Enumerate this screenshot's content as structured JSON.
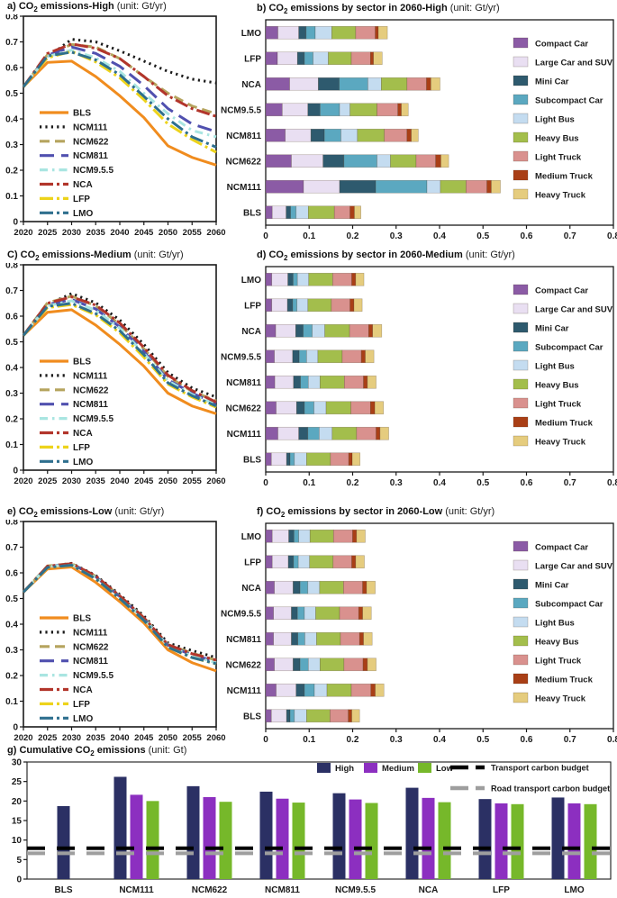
{
  "panels": {
    "a": {
      "prefix": "a) CO",
      "sub": "2",
      "rest": " emissions-High",
      "unit": "(unit: Gt/yr)"
    },
    "b": {
      "prefix": "b) CO",
      "sub": "2",
      "rest": " emissions by sector in 2060-High",
      "unit": "(unit: Gt/yr)"
    },
    "c": {
      "prefix": "C) CO",
      "sub": "2",
      "rest": " emissions-Medium",
      "unit": "(unit: Gt/yr)"
    },
    "d": {
      "prefix": "d) CO",
      "sub": "2",
      "rest": " emissions by sector in 2060-Medium",
      "unit": "(unit: Gt/yr)"
    },
    "e": {
      "prefix": "e) CO",
      "sub": "2",
      "rest": " emissions-Low",
      "unit": "(unit: Gt/yr)"
    },
    "f": {
      "prefix": "f) CO",
      "sub": "2",
      "rest": " emissions by sector in 2060-Low",
      "unit": "(unit: Gt/yr)"
    },
    "g": {
      "prefix": "g) Cumulative CO",
      "sub": "2",
      "rest": " emissions",
      "unit": "(unit: Gt)"
    }
  },
  "chart_data": [
    {
      "id": "a",
      "type": "line",
      "title": "a) CO2 emissions-High (unit: Gt/yr)",
      "x": [
        2020,
        2025,
        2030,
        2035,
        2040,
        2045,
        2050,
        2055,
        2060
      ],
      "ylim": [
        0,
        0.8
      ],
      "yticks": [
        0,
        0.1,
        0.2,
        0.3,
        0.4,
        0.5,
        0.6,
        0.7,
        0.8
      ],
      "legend_position": "lower-left",
      "grid": false,
      "series": [
        {
          "name": "BLS",
          "color": "#F08C1E",
          "dash": "solid",
          "values": [
            0.525,
            0.62,
            0.625,
            0.565,
            0.49,
            0.405,
            0.295,
            0.25,
            0.22
          ]
        },
        {
          "name": "NCM111",
          "color": "#1A1A1A",
          "dash": "dotted",
          "values": [
            0.525,
            0.64,
            0.71,
            0.7,
            0.665,
            0.625,
            0.585,
            0.555,
            0.54
          ]
        },
        {
          "name": "NCM622",
          "color": "#B5A45E",
          "dash": "dashed",
          "values": [
            0.525,
            0.65,
            0.69,
            0.68,
            0.635,
            0.565,
            0.5,
            0.45,
            0.42
          ]
        },
        {
          "name": "NCM811",
          "color": "#5050AF",
          "dash": "longdash",
          "values": [
            0.525,
            0.648,
            0.68,
            0.655,
            0.605,
            0.53,
            0.44,
            0.38,
            0.35
          ]
        },
        {
          "name": "NCM9.5.5",
          "color": "#A9E5E1",
          "dash": "dashdot",
          "values": [
            0.525,
            0.643,
            0.668,
            0.638,
            0.585,
            0.5,
            0.42,
            0.355,
            0.33
          ]
        },
        {
          "name": "NCA",
          "color": "#B2352B",
          "dash": "soliddot",
          "values": [
            0.525,
            0.655,
            0.692,
            0.675,
            0.635,
            0.565,
            0.49,
            0.44,
            0.41
          ]
        },
        {
          "name": "LFP",
          "color": "#EDD31B",
          "dash": "soliddot",
          "values": [
            0.525,
            0.638,
            0.663,
            0.622,
            0.56,
            0.475,
            0.38,
            0.32,
            0.27
          ]
        },
        {
          "name": "LMO",
          "color": "#2E6F8E",
          "dash": "soliddot",
          "values": [
            0.525,
            0.645,
            0.66,
            0.63,
            0.572,
            0.488,
            0.4,
            0.33,
            0.29
          ]
        }
      ]
    },
    {
      "id": "b",
      "type": "stacked-bar-horizontal",
      "title": "b) CO2 emissions by sector in 2060-High (unit: Gt/yr)",
      "xlim": [
        0,
        0.8
      ],
      "xticks": [
        0,
        0.1,
        0.2,
        0.3,
        0.4,
        0.5,
        0.6,
        0.7,
        0.8
      ],
      "categories": [
        "LMO",
        "LFP",
        "NCA",
        "NCM9.5.5",
        "NCM811",
        "NCM622",
        "NCM111",
        "BLS"
      ],
      "sectors": [
        {
          "name": "Compact Car",
          "color": "#8B5BA5"
        },
        {
          "name": "Large Car and SUV",
          "color": "#E9DFF2"
        },
        {
          "name": "Mini Car",
          "color": "#2E5A6E"
        },
        {
          "name": "Subcompact Car",
          "color": "#5BA8C0"
        },
        {
          "name": "Light Bus",
          "color": "#C4DCF0"
        },
        {
          "name": "Heavy Bus",
          "color": "#A3BE4C"
        },
        {
          "name": "Light Truck",
          "color": "#D9918E"
        },
        {
          "name": "Medium Truck",
          "color": "#A93F16"
        },
        {
          "name": "Heavy Truck",
          "color": "#E5CC7E"
        }
      ],
      "values": {
        "LMO": [
          0.028,
          0.048,
          0.017,
          0.021,
          0.038,
          0.055,
          0.045,
          0.007,
          0.021
        ],
        "LFP": [
          0.027,
          0.046,
          0.016,
          0.02,
          0.035,
          0.053,
          0.044,
          0.007,
          0.02
        ],
        "NCA": [
          0.055,
          0.066,
          0.048,
          0.066,
          0.031,
          0.059,
          0.045,
          0.01,
          0.021
        ],
        "NCM9.5.5": [
          0.038,
          0.059,
          0.028,
          0.045,
          0.024,
          0.062,
          0.048,
          0.008,
          0.016
        ],
        "NCM811": [
          0.045,
          0.059,
          0.031,
          0.038,
          0.038,
          0.062,
          0.052,
          0.01,
          0.016
        ],
        "NCM622": [
          0.059,
          0.073,
          0.048,
          0.076,
          0.031,
          0.059,
          0.045,
          0.012,
          0.018
        ],
        "NCM111": [
          0.087,
          0.083,
          0.083,
          0.118,
          0.031,
          0.059,
          0.048,
          0.01,
          0.021
        ],
        "BLS": [
          0.015,
          0.032,
          0.01,
          0.013,
          0.028,
          0.06,
          0.036,
          0.01,
          0.015
        ]
      }
    },
    {
      "id": "c",
      "type": "line",
      "title": "C) CO2 emissions-Medium (unit: Gt/yr)",
      "x": [
        2020,
        2025,
        2030,
        2035,
        2040,
        2045,
        2050,
        2055,
        2060
      ],
      "ylim": [
        0,
        0.8
      ],
      "yticks": [
        0,
        0.1,
        0.2,
        0.3,
        0.4,
        0.5,
        0.6,
        0.7,
        0.8
      ],
      "legend_position": "lower-left",
      "grid": false,
      "series": [
        {
          "name": "BLS",
          "color": "#F08C1E",
          "dash": "solid",
          "values": [
            0.525,
            0.615,
            0.625,
            0.565,
            0.49,
            0.405,
            0.3,
            0.25,
            0.22
          ]
        },
        {
          "name": "NCM111",
          "color": "#1A1A1A",
          "dash": "dotted",
          "values": [
            0.525,
            0.645,
            0.688,
            0.652,
            0.585,
            0.49,
            0.38,
            0.32,
            0.285
          ]
        },
        {
          "name": "NCM622",
          "color": "#B5A45E",
          "dash": "dashed",
          "values": [
            0.525,
            0.652,
            0.678,
            0.64,
            0.568,
            0.473,
            0.365,
            0.307,
            0.27
          ]
        },
        {
          "name": "NCM811",
          "color": "#5050AF",
          "dash": "longdash",
          "values": [
            0.525,
            0.645,
            0.665,
            0.628,
            0.558,
            0.462,
            0.352,
            0.3,
            0.26
          ]
        },
        {
          "name": "NCM9.5.5",
          "color": "#A9E5E1",
          "dash": "dashdot",
          "values": [
            0.525,
            0.64,
            0.66,
            0.623,
            0.553,
            0.455,
            0.348,
            0.295,
            0.255
          ]
        },
        {
          "name": "NCA",
          "color": "#B2352B",
          "dash": "soliddot",
          "values": [
            0.525,
            0.65,
            0.675,
            0.643,
            0.573,
            0.478,
            0.37,
            0.31,
            0.265
          ]
        },
        {
          "name": "LFP",
          "color": "#EDD31B",
          "dash": "soliddot",
          "values": [
            0.525,
            0.633,
            0.645,
            0.605,
            0.535,
            0.44,
            0.335,
            0.285,
            0.245
          ]
        },
        {
          "name": "LMO",
          "color": "#2E6F8E",
          "dash": "soliddot",
          "values": [
            0.525,
            0.638,
            0.65,
            0.61,
            0.543,
            0.45,
            0.34,
            0.29,
            0.25
          ]
        }
      ]
    },
    {
      "id": "d",
      "type": "stacked-bar-horizontal",
      "title": "d) CO2 emissions by sector in 2060-Medium (unit: Gt/yr)",
      "xlim": [
        0,
        0.8
      ],
      "xticks": [
        0,
        0.1,
        0.2,
        0.3,
        0.4,
        0.5,
        0.6,
        0.7,
        0.8
      ],
      "categories": [
        "LMO",
        "LFP",
        "NCA",
        "NCM9.5.5",
        "NCM811",
        "NCM622",
        "NCM111",
        "BLS"
      ],
      "sectors": [
        {
          "name": "Compact Car",
          "color": "#8B5BA5"
        },
        {
          "name": "Large Car and SUV",
          "color": "#E9DFF2"
        },
        {
          "name": "Mini Car",
          "color": "#2E5A6E"
        },
        {
          "name": "Subcompact Car",
          "color": "#5BA8C0"
        },
        {
          "name": "Light Bus",
          "color": "#C4DCF0"
        },
        {
          "name": "Heavy Bus",
          "color": "#A3BE4C"
        },
        {
          "name": "Light Truck",
          "color": "#D9918E"
        },
        {
          "name": "Medium Truck",
          "color": "#A93F16"
        },
        {
          "name": "Heavy Truck",
          "color": "#E5CC7E"
        }
      ],
      "values": {
        "LMO": [
          0.014,
          0.037,
          0.012,
          0.01,
          0.026,
          0.055,
          0.044,
          0.009,
          0.019
        ],
        "LFP": [
          0.014,
          0.036,
          0.012,
          0.01,
          0.025,
          0.054,
          0.043,
          0.009,
          0.019
        ],
        "NCA": [
          0.023,
          0.046,
          0.017,
          0.021,
          0.029,
          0.057,
          0.044,
          0.009,
          0.021
        ],
        "NCM9.5.5": [
          0.02,
          0.042,
          0.015,
          0.017,
          0.026,
          0.056,
          0.044,
          0.009,
          0.02
        ],
        "NCM811": [
          0.021,
          0.043,
          0.016,
          0.018,
          0.027,
          0.056,
          0.044,
          0.009,
          0.02
        ],
        "NCM622": [
          0.024,
          0.047,
          0.018,
          0.022,
          0.028,
          0.057,
          0.045,
          0.01,
          0.02
        ],
        "NCM111": [
          0.028,
          0.048,
          0.021,
          0.026,
          0.03,
          0.056,
          0.045,
          0.009,
          0.02
        ],
        "BLS": [
          0.013,
          0.035,
          0.008,
          0.01,
          0.028,
          0.055,
          0.042,
          0.008,
          0.018
        ]
      }
    },
    {
      "id": "e",
      "type": "line",
      "title": "e) CO2 emissions-Low (unit: Gt/yr)",
      "x": [
        2020,
        2025,
        2030,
        2035,
        2040,
        2045,
        2050,
        2055,
        2060
      ],
      "ylim": [
        0,
        0.8
      ],
      "yticks": [
        0,
        0.1,
        0.2,
        0.3,
        0.4,
        0.5,
        0.6,
        0.7,
        0.8
      ],
      "legend_position": "lower-left",
      "grid": false,
      "series": [
        {
          "name": "BLS",
          "color": "#F08C1E",
          "dash": "solid",
          "values": [
            0.525,
            0.615,
            0.623,
            0.563,
            0.488,
            0.405,
            0.3,
            0.25,
            0.218
          ]
        },
        {
          "name": "NCM111",
          "color": "#1A1A1A",
          "dash": "dotted",
          "values": [
            0.525,
            0.625,
            0.637,
            0.59,
            0.515,
            0.432,
            0.327,
            0.297,
            0.27
          ]
        },
        {
          "name": "NCM622",
          "color": "#B5A45E",
          "dash": "dashed",
          "values": [
            0.525,
            0.627,
            0.636,
            0.587,
            0.51,
            0.426,
            0.32,
            0.287,
            0.26
          ]
        },
        {
          "name": "NCM811",
          "color": "#5050AF",
          "dash": "longdash",
          "values": [
            0.525,
            0.625,
            0.635,
            0.585,
            0.507,
            0.422,
            0.317,
            0.28,
            0.255
          ]
        },
        {
          "name": "NCM9.5.5",
          "color": "#A9E5E1",
          "dash": "dashdot",
          "values": [
            0.525,
            0.624,
            0.632,
            0.582,
            0.505,
            0.42,
            0.315,
            0.276,
            0.25
          ]
        },
        {
          "name": "NCA",
          "color": "#B2352B",
          "dash": "soliddot",
          "values": [
            0.525,
            0.626,
            0.636,
            0.588,
            0.51,
            0.425,
            0.32,
            0.285,
            0.26
          ]
        },
        {
          "name": "LFP",
          "color": "#EDD31B",
          "dash": "soliddot",
          "values": [
            0.525,
            0.62,
            0.63,
            0.578,
            0.5,
            0.415,
            0.31,
            0.27,
            0.245
          ]
        },
        {
          "name": "LMO",
          "color": "#2E6F8E",
          "dash": "soliddot",
          "values": [
            0.525,
            0.621,
            0.63,
            0.577,
            0.5,
            0.415,
            0.31,
            0.27,
            0.246
          ]
        }
      ]
    },
    {
      "id": "f",
      "type": "stacked-bar-horizontal",
      "title": "f) CO2 emissions by sector in 2060-Low (unit: Gt/yr)",
      "xlim": [
        0,
        0.8
      ],
      "xticks": [
        0,
        0.1,
        0.2,
        0.3,
        0.4,
        0.5,
        0.6,
        0.7,
        0.8
      ],
      "categories": [
        "LMO",
        "LFP",
        "NCA",
        "NCM9.5.5",
        "NCM811",
        "NCM622",
        "NCM111",
        "BLS"
      ],
      "sectors": [
        {
          "name": "Compact Car",
          "color": "#8B5BA5"
        },
        {
          "name": "Large Car and SUV",
          "color": "#E9DFF2"
        },
        {
          "name": "Mini Car",
          "color": "#2E5A6E"
        },
        {
          "name": "Subcompact Car",
          "color": "#5BA8C0"
        },
        {
          "name": "Light Bus",
          "color": "#C4DCF0"
        },
        {
          "name": "Heavy Bus",
          "color": "#A3BE4C"
        },
        {
          "name": "Light Truck",
          "color": "#D9918E"
        },
        {
          "name": "Medium Truck",
          "color": "#A93F16"
        },
        {
          "name": "Heavy Truck",
          "color": "#E5CC7E"
        }
      ],
      "values": {
        "LMO": [
          0.015,
          0.038,
          0.012,
          0.011,
          0.026,
          0.054,
          0.044,
          0.009,
          0.02
        ],
        "LFP": [
          0.015,
          0.037,
          0.012,
          0.011,
          0.026,
          0.054,
          0.043,
          0.009,
          0.02
        ],
        "NCA": [
          0.02,
          0.043,
          0.016,
          0.018,
          0.027,
          0.055,
          0.044,
          0.009,
          0.02
        ],
        "NCM9.5.5": [
          0.018,
          0.041,
          0.014,
          0.016,
          0.026,
          0.055,
          0.044,
          0.009,
          0.02
        ],
        "NCM811": [
          0.018,
          0.041,
          0.015,
          0.016,
          0.027,
          0.055,
          0.044,
          0.009,
          0.02
        ],
        "NCM622": [
          0.02,
          0.043,
          0.016,
          0.019,
          0.027,
          0.055,
          0.044,
          0.01,
          0.02
        ],
        "NCM111": [
          0.024,
          0.046,
          0.019,
          0.023,
          0.029,
          0.056,
          0.045,
          0.01,
          0.02
        ],
        "BLS": [
          0.013,
          0.035,
          0.008,
          0.01,
          0.028,
          0.054,
          0.042,
          0.008,
          0.018
        ]
      }
    },
    {
      "id": "g",
      "type": "bar",
      "title": "g) Cumulative CO2 emissions (unit: Gt)",
      "ylim": [
        0,
        30
      ],
      "yticks": [
        0,
        5,
        10,
        15,
        20,
        25,
        30
      ],
      "categories": [
        "BLS",
        "NCM111",
        "NCM622",
        "NCM811",
        "NCM9.5.5",
        "NCA",
        "LFP",
        "LMO"
      ],
      "series": [
        {
          "name": "High",
          "color": "#2B3064",
          "values": [
            18.7,
            26.2,
            23.8,
            22.4,
            22.0,
            23.4,
            20.5,
            20.9
          ]
        },
        {
          "name": "Medium",
          "color": "#8C2FC0",
          "values": [
            null,
            21.6,
            21.0,
            20.6,
            20.4,
            20.8,
            19.4,
            19.4
          ]
        },
        {
          "name": "Low",
          "color": "#76B82A",
          "values": [
            null,
            20.0,
            19.8,
            19.6,
            19.5,
            19.7,
            19.2,
            19.2
          ]
        }
      ],
      "budget_lines": [
        {
          "name": "Transport carbon budget",
          "color": "#000000",
          "value": 7.9
        },
        {
          "name": "Road transport carbon budget",
          "color": "#9E9E9E",
          "value": 6.6
        }
      ]
    }
  ]
}
